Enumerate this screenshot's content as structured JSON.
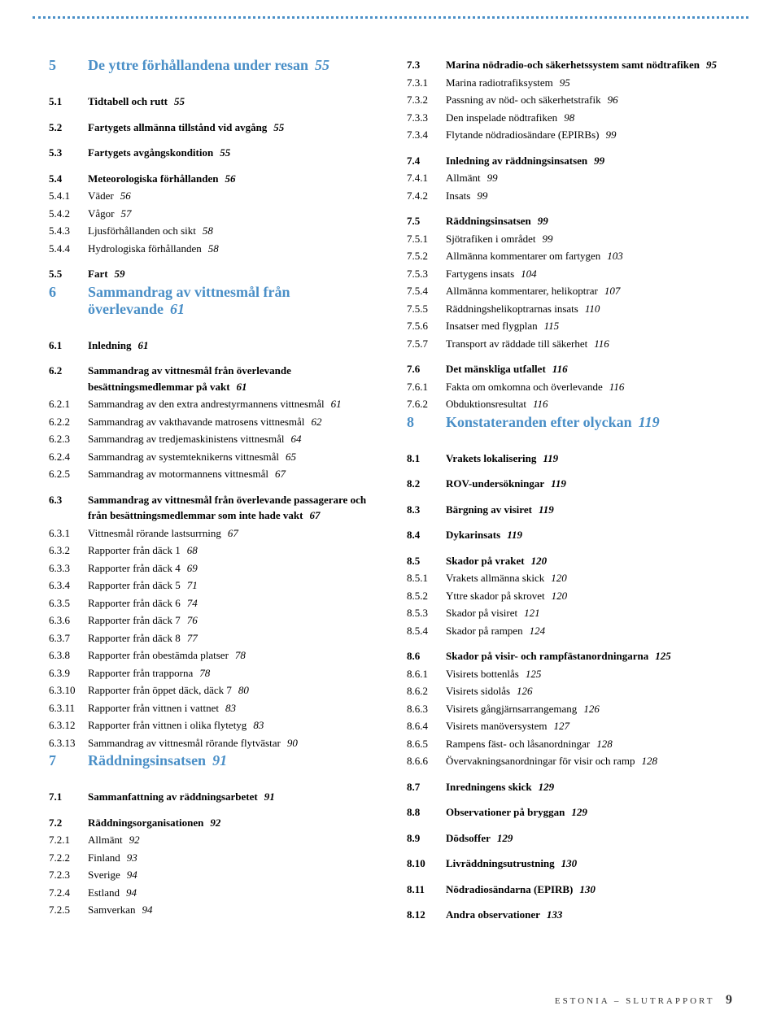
{
  "footer": {
    "text": "ESTONIA – SLUTRAPPORT",
    "page": "9"
  },
  "left": [
    {
      "type": "chapter",
      "num": "5",
      "title": "De yttre förhållandena under resan",
      "page": "55"
    },
    {
      "type": "sec",
      "bold": true,
      "num": "5.1",
      "text": "Tidtabell och rutt",
      "page": "55"
    },
    {
      "type": "space"
    },
    {
      "type": "sec",
      "bold": true,
      "num": "5.2",
      "text": "Fartygets allmänna tillstånd vid avgång",
      "page": "55"
    },
    {
      "type": "space"
    },
    {
      "type": "sec",
      "bold": true,
      "num": "5.3",
      "text": "Fartygets avgångskondition",
      "page": "55"
    },
    {
      "type": "space"
    },
    {
      "type": "sec",
      "bold": true,
      "num": "5.4",
      "text": "Meteorologiska förhållanden",
      "page": "56"
    },
    {
      "type": "sec",
      "num": "5.4.1",
      "text": "Väder",
      "page": "56"
    },
    {
      "type": "sec",
      "num": "5.4.2",
      "text": "Vågor",
      "page": "57"
    },
    {
      "type": "sec",
      "num": "5.4.3",
      "text": "Ljusförhållanden och sikt",
      "page": "58"
    },
    {
      "type": "sec",
      "num": "5.4.4",
      "text": "Hydrologiska förhållanden",
      "page": "58"
    },
    {
      "type": "space"
    },
    {
      "type": "sec",
      "bold": true,
      "num": "5.5",
      "text": "Fart",
      "page": "59"
    },
    {
      "type": "chapter",
      "num": "6",
      "title": "Sammandrag av vittnesmål från överlevande",
      "page": "61"
    },
    {
      "type": "sec",
      "bold": true,
      "num": "6.1",
      "text": "Inledning",
      "page": "61"
    },
    {
      "type": "space"
    },
    {
      "type": "sec",
      "bold": true,
      "num": "6.2",
      "text": "Sammandrag av vittnesmål från överlevande besättningsmedlemmar på vakt",
      "page": "61"
    },
    {
      "type": "sec",
      "num": "6.2.1",
      "text": "Sammandrag av den extra andrestyrmannens vittnesmål",
      "page": "61"
    },
    {
      "type": "sec",
      "num": "6.2.2",
      "text": "Sammandrag av vakthavande matrosens vittnesmål",
      "page": "62"
    },
    {
      "type": "sec",
      "num": "6.2.3",
      "text": "Sammandrag av tredjemaskinistens vittnesmål",
      "page": "64"
    },
    {
      "type": "sec",
      "num": "6.2.4",
      "text": "Sammandrag av systemteknikerns vittnesmål",
      "page": "65"
    },
    {
      "type": "sec",
      "num": "6.2.5",
      "text": "Sammandrag av motormannens vittnesmål",
      "page": "67"
    },
    {
      "type": "space"
    },
    {
      "type": "sec",
      "bold": true,
      "num": "6.3",
      "text": "Sammandrag av vittnesmål från överlevande passagerare och från besättningsmedlemmar som inte hade vakt",
      "page": "67"
    },
    {
      "type": "sec",
      "num": "6.3.1",
      "text": "Vittnesmål rörande lastsurrning",
      "page": "67"
    },
    {
      "type": "sec",
      "num": "6.3.2",
      "text": "Rapporter från däck 1",
      "page": "68"
    },
    {
      "type": "sec",
      "num": "6.3.3",
      "text": "Rapporter från däck 4",
      "page": "69"
    },
    {
      "type": "sec",
      "num": "6.3.4",
      "text": "Rapporter från däck 5",
      "page": "71"
    },
    {
      "type": "sec",
      "num": "6.3.5",
      "text": "Rapporter från däck 6",
      "page": "74"
    },
    {
      "type": "sec",
      "num": "6.3.6",
      "text": "Rapporter från däck 7",
      "page": "76"
    },
    {
      "type": "sec",
      "num": "6.3.7",
      "text": "Rapporter från däck 8",
      "page": "77"
    },
    {
      "type": "sec",
      "num": "6.3.8",
      "text": "Rapporter från obestämda platser",
      "page": "78"
    },
    {
      "type": "sec",
      "num": "6.3.9",
      "text": "Rapporter från trapporna",
      "page": "78"
    },
    {
      "type": "sec",
      "num": "6.3.10",
      "text": "Rapporter från öppet däck, däck 7",
      "page": "80"
    },
    {
      "type": "sec",
      "num": "6.3.11",
      "text": "Rapporter från vittnen i vattnet",
      "page": "83"
    },
    {
      "type": "sec",
      "num": "6.3.12",
      "text": "Rapporter från vittnen i olika flytetyg",
      "page": "83"
    },
    {
      "type": "sec",
      "num": "6.3.13",
      "text": "Sammandrag av vittnesmål rörande flytvästar",
      "page": "90"
    },
    {
      "type": "chapter",
      "num": "7",
      "title": "Räddningsinsatsen",
      "page": "91"
    },
    {
      "type": "sec",
      "bold": true,
      "num": "7.1",
      "text": "Sammanfattning av räddningsarbetet",
      "page": "91"
    },
    {
      "type": "space"
    },
    {
      "type": "sec",
      "bold": true,
      "num": "7.2",
      "text": "Räddningsorganisationen",
      "page": "92"
    },
    {
      "type": "sec",
      "num": "7.2.1",
      "text": "Allmänt",
      "page": "92"
    },
    {
      "type": "sec",
      "num": "7.2.2",
      "text": "Finland",
      "page": "93"
    },
    {
      "type": "sec",
      "num": "7.2.3",
      "text": "Sverige",
      "page": "94"
    },
    {
      "type": "sec",
      "num": "7.2.4",
      "text": "Estland",
      "page": "94"
    },
    {
      "type": "sec",
      "num": "7.2.5",
      "text": "Samverkan",
      "page": "94"
    }
  ],
  "right": [
    {
      "type": "sec",
      "bold": true,
      "num": "7.3",
      "text": "Marina nödradio-och säkerhetssystem samt nödtrafiken",
      "page": "95"
    },
    {
      "type": "sec",
      "num": "7.3.1",
      "text": "Marina radiotrafiksystem",
      "page": "95"
    },
    {
      "type": "sec",
      "num": "7.3.2",
      "text": "Passning av nöd- och säkerhetstrafik",
      "page": "96"
    },
    {
      "type": "sec",
      "num": "7.3.3",
      "text": "Den inspelade nödtrafiken",
      "page": "98"
    },
    {
      "type": "sec",
      "num": "7.3.4",
      "text": "Flytande nödradiosändare (EPIRBs)",
      "page": "99"
    },
    {
      "type": "space"
    },
    {
      "type": "sec",
      "bold": true,
      "num": "7.4",
      "text": "Inledning av räddningsinsatsen",
      "page": "99"
    },
    {
      "type": "sec",
      "num": "7.4.1",
      "text": "Allmänt",
      "page": "99"
    },
    {
      "type": "sec",
      "num": "7.4.2",
      "text": "Insats",
      "page": "99"
    },
    {
      "type": "space"
    },
    {
      "type": "sec",
      "bold": true,
      "num": "7.5",
      "text": "Räddningsinsatsen",
      "page": "99"
    },
    {
      "type": "sec",
      "num": "7.5.1",
      "text": "Sjötrafiken i området",
      "page": "99"
    },
    {
      "type": "sec",
      "num": "7.5.2",
      "text": "Allmänna kommentarer om fartygen",
      "page": "103"
    },
    {
      "type": "sec",
      "num": "7.5.3",
      "text": "Fartygens insats",
      "page": "104"
    },
    {
      "type": "sec",
      "num": "7.5.4",
      "text": "Allmänna kommentarer, helikoptrar",
      "page": "107"
    },
    {
      "type": "sec",
      "num": "7.5.5",
      "text": "Räddningshelikoptrarnas insats",
      "page": "110"
    },
    {
      "type": "sec",
      "num": "7.5.6",
      "text": "Insatser med flygplan",
      "page": "115"
    },
    {
      "type": "sec",
      "num": "7.5.7",
      "text": "Transport av räddade till säkerhet",
      "page": "116"
    },
    {
      "type": "space"
    },
    {
      "type": "sec",
      "bold": true,
      "num": "7.6",
      "text": "Det mänskliga utfallet",
      "page": "116"
    },
    {
      "type": "sec",
      "num": "7.6.1",
      "text": "Fakta om omkomna och överlevande",
      "page": "116"
    },
    {
      "type": "sec",
      "num": "7.6.2",
      "text": "Obduktionsresultat",
      "page": "116"
    },
    {
      "type": "chapter",
      "num": "8",
      "title": "Konstateranden efter olyckan",
      "page": "119"
    },
    {
      "type": "sec",
      "bold": true,
      "num": "8.1",
      "text": "Vrakets lokalisering",
      "page": "119"
    },
    {
      "type": "space"
    },
    {
      "type": "sec",
      "bold": true,
      "num": "8.2",
      "text": "ROV-undersökningar",
      "page": "119"
    },
    {
      "type": "space"
    },
    {
      "type": "sec",
      "bold": true,
      "num": "8.3",
      "text": "Bärgning av visiret",
      "page": "119"
    },
    {
      "type": "space"
    },
    {
      "type": "sec",
      "bold": true,
      "num": "8.4",
      "text": "Dykarinsats",
      "page": "119"
    },
    {
      "type": "space"
    },
    {
      "type": "sec",
      "bold": true,
      "num": "8.5",
      "text": "Skador på vraket",
      "page": "120"
    },
    {
      "type": "sec",
      "num": "8.5.1",
      "text": "Vrakets allmänna skick",
      "page": "120"
    },
    {
      "type": "sec",
      "num": "8.5.2",
      "text": "Yttre skador på skrovet",
      "page": "120"
    },
    {
      "type": "sec",
      "num": "8.5.3",
      "text": "Skador på visiret",
      "page": "121"
    },
    {
      "type": "sec",
      "num": "8.5.4",
      "text": "Skador på rampen",
      "page": "124"
    },
    {
      "type": "space"
    },
    {
      "type": "sec",
      "bold": true,
      "num": "8.6",
      "text": "Skador på visir- och rampfästanordningarna",
      "page": "125"
    },
    {
      "type": "sec",
      "num": "8.6.1",
      "text": "Visirets bottenlås",
      "page": "125"
    },
    {
      "type": "sec",
      "num": "8.6.2",
      "text": "Visirets sidolås",
      "page": "126"
    },
    {
      "type": "sec",
      "num": "8.6.3",
      "text": "Visirets gångjärnsarrangemang",
      "page": "126"
    },
    {
      "type": "sec",
      "num": "8.6.4",
      "text": "Visirets manöversystem",
      "page": "127"
    },
    {
      "type": "sec",
      "num": "8.6.5",
      "text": "Rampens fäst- och låsanordningar",
      "page": "128"
    },
    {
      "type": "sec",
      "num": "8.6.6",
      "text": "Övervakningsanordningar för visir och ramp",
      "page": "128"
    },
    {
      "type": "space"
    },
    {
      "type": "sec",
      "bold": true,
      "num": "8.7",
      "text": "Inredningens skick",
      "page": "129"
    },
    {
      "type": "space"
    },
    {
      "type": "sec",
      "bold": true,
      "num": "8.8",
      "text": "Observationer på bryggan",
      "page": "129"
    },
    {
      "type": "space"
    },
    {
      "type": "sec",
      "bold": true,
      "num": "8.9",
      "text": "Dödsoffer",
      "page": "129"
    },
    {
      "type": "space"
    },
    {
      "type": "sec",
      "bold": true,
      "num": "8.10",
      "text": "Livräddningsutrustning",
      "page": "130"
    },
    {
      "type": "space"
    },
    {
      "type": "sec",
      "bold": true,
      "num": "8.11",
      "text": "Nödradiosändarna (EPIRB)",
      "page": "130"
    },
    {
      "type": "space"
    },
    {
      "type": "sec",
      "bold": true,
      "num": "8.12",
      "text": "Andra observationer",
      "page": "133"
    }
  ]
}
